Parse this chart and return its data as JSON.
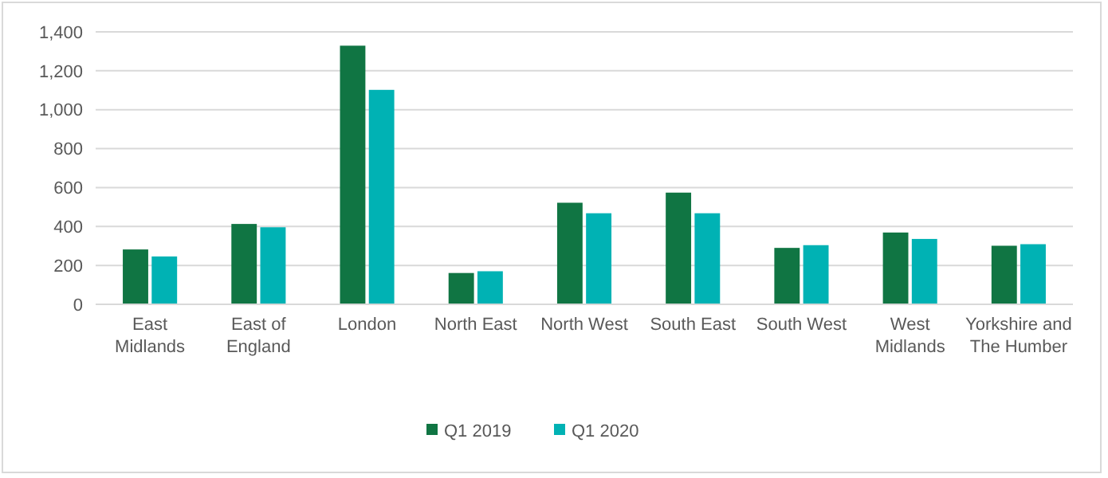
{
  "chart_data": {
    "type": "bar",
    "categories": [
      "East Midlands",
      "East of England",
      "London",
      "North East",
      "North West",
      "South East",
      "South West",
      "West Midlands",
      "Yorkshire and The Humber"
    ],
    "series": [
      {
        "name": "Q1 2019",
        "color": "#107543",
        "values": [
          282,
          413,
          1329,
          161,
          522,
          574,
          290,
          369,
          301
        ]
      },
      {
        "name": "Q1 2020",
        "color": "#00b2b4",
        "values": [
          246,
          396,
          1102,
          170,
          468,
          468,
          304,
          336,
          309
        ]
      }
    ],
    "ylim": [
      0,
      1400
    ],
    "yticks": [
      {
        "value": 0,
        "label": "0"
      },
      {
        "value": 200,
        "label": "200"
      },
      {
        "value": 400,
        "label": "400"
      },
      {
        "value": 600,
        "label": "600"
      },
      {
        "value": 800,
        "label": "800"
      },
      {
        "value": 1000,
        "label": "1,000"
      },
      {
        "value": 1200,
        "label": "1,200"
      },
      {
        "value": 1400,
        "label": "1,400"
      }
    ],
    "grid": "y",
    "legend": "bottom"
  }
}
